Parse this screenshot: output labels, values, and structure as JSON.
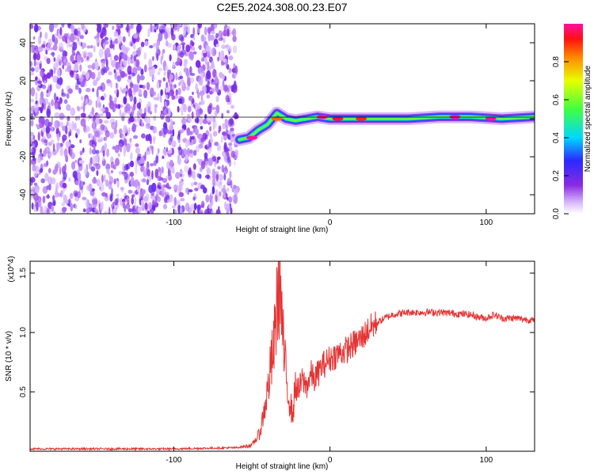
{
  "figure": {
    "title": "C2E5.2024.308.00.23.E07"
  },
  "chart_data": [
    {
      "type": "heatmap",
      "title": "C2E5.2024.308.00.23.E07",
      "xlabel": "Height of straight line (km)",
      "ylabel": "Frequency (Hz)",
      "xlim": [
        -192,
        131
      ],
      "ylim": [
        -50,
        50
      ],
      "xticks": [
        -100,
        0,
        100
      ],
      "xtick_labels": [
        "-100",
        "0",
        "100"
      ],
      "yticks": [
        -40,
        -20,
        0,
        20,
        40
      ],
      "ytick_labels": [
        "-40",
        "-20",
        "0",
        "20",
        "40"
      ],
      "colorbar": {
        "label": "Normalized spectral amplitude",
        "range": [
          0,
          1
        ],
        "ticks": [
          0.0,
          0.2,
          0.4,
          0.6,
          0.8
        ],
        "tick_labels": [
          "0.0",
          "0.2",
          "0.4",
          "0.6",
          "0.8"
        ],
        "colormap": "rainbow (white-violet-blue-cyan-green-yellow-red-magenta)"
      },
      "noise_region_x": [
        -192,
        -59
      ],
      "signal_track": {
        "x": [
          -58,
          -52,
          -46,
          -40,
          -34,
          -28,
          -22,
          -15,
          -8,
          0,
          15,
          30,
          50,
          70,
          90,
          110,
          131
        ],
        "freq": [
          -11,
          -10,
          -6,
          -3,
          3,
          0,
          -1,
          0,
          1,
          0,
          0,
          0,
          0,
          1,
          1,
          0,
          1
        ]
      },
      "peak_regions": [
        {
          "x": -50,
          "freq": -10,
          "value": 1.0
        },
        {
          "x": -34,
          "freq": 0,
          "value": 0.85
        },
        {
          "x": -5,
          "freq": 1,
          "value": 1.0
        },
        {
          "x": 5,
          "freq": 0,
          "value": 0.95
        },
        {
          "x": 20,
          "freq": 0,
          "value": 0.9
        },
        {
          "x": 80,
          "freq": 1,
          "value": 1.0
        },
        {
          "x": 103,
          "freq": 0,
          "value": 1.0
        }
      ]
    },
    {
      "type": "line",
      "xlabel": "Height of straight line (km)",
      "ylabel": "SNR (10 * v/v)",
      "y_multiplier": "(x10^4)",
      "xlim": [
        -192,
        131
      ],
      "ylim": [
        0,
        1.6
      ],
      "xticks": [
        -100,
        0,
        100
      ],
      "xtick_labels": [
        "-100",
        "0",
        "100"
      ],
      "yticks": [
        0.5,
        1.0,
        1.5
      ],
      "ytick_labels": [
        "0.5",
        "1.0",
        "1.5"
      ],
      "color": "#e53333",
      "series": [
        {
          "x": [
            -192,
            -150,
            -100,
            -60,
            -50,
            -45,
            -42,
            -40,
            -38,
            -36,
            -34,
            -32,
            -31,
            -30,
            -28,
            -26,
            -24,
            -22,
            -20,
            -18,
            -15,
            -12,
            -10,
            -5,
            0,
            5,
            10,
            15,
            20,
            25,
            30,
            35,
            40,
            50,
            60,
            70,
            80,
            90,
            95,
            100,
            105,
            110,
            120,
            131
          ],
          "y": [
            0.02,
            0.02,
            0.02,
            0.03,
            0.05,
            0.15,
            0.35,
            0.5,
            0.7,
            0.85,
            1.25,
            1.5,
            1.15,
            0.9,
            0.6,
            0.45,
            0.3,
            0.55,
            0.5,
            0.6,
            0.55,
            0.65,
            0.6,
            0.72,
            0.78,
            0.82,
            0.85,
            0.9,
            0.95,
            1.03,
            1.08,
            1.12,
            1.15,
            1.17,
            1.17,
            1.17,
            1.16,
            1.15,
            1.13,
            1.12,
            1.15,
            1.12,
            1.12,
            1.1
          ]
        }
      ]
    }
  ]
}
